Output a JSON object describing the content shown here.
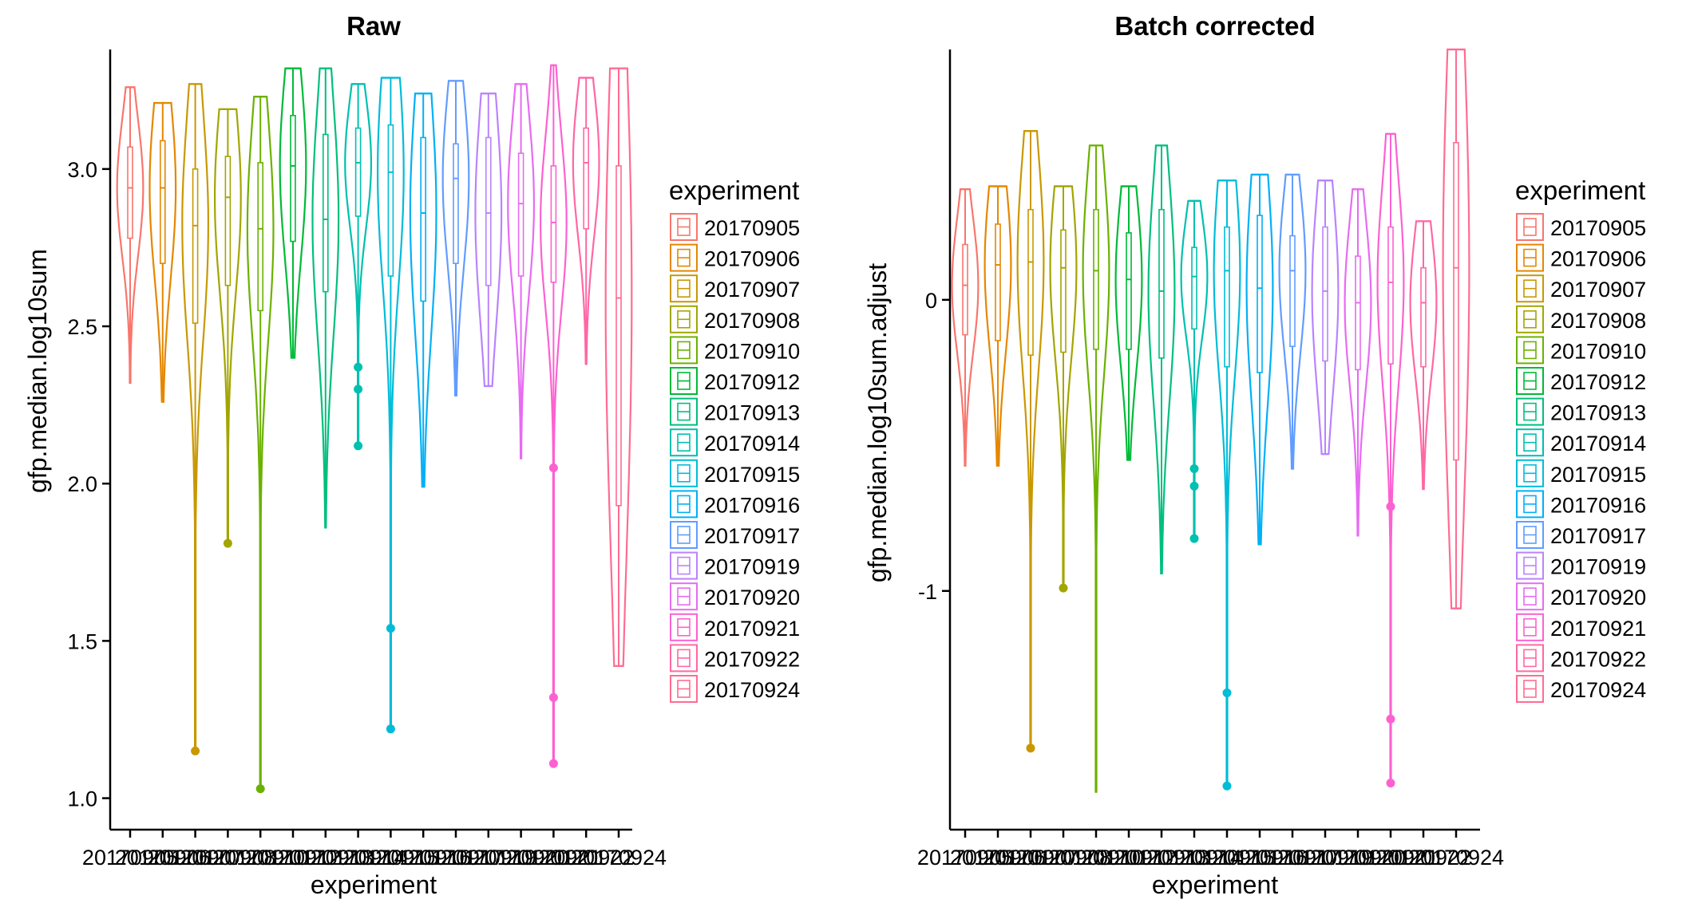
{
  "chart_data": [
    {
      "type": "violin",
      "title": "Raw",
      "xlabel": "experiment",
      "ylabel": "gfp.median.log10sum",
      "ylim": [
        0.9,
        3.38
      ],
      "yticks": [
        1.0,
        1.5,
        2.0,
        2.5,
        3.0
      ],
      "ytick_labels": [
        "1.0",
        "1.5",
        "2.0",
        "2.5",
        "3.0"
      ],
      "legend": {
        "title": "experiment",
        "position": "right"
      },
      "categories": [
        "20170905",
        "20170906",
        "20170907",
        "20170908",
        "20170910",
        "20170912",
        "20170913",
        "20170914",
        "20170915",
        "20170916",
        "20170917",
        "20170919",
        "20170920",
        "20170921",
        "20170922",
        "20170924"
      ],
      "series": [
        {
          "name": "20170905",
          "color": "#F8766D",
          "ymin": 2.32,
          "ymax": 3.26,
          "q1": 2.78,
          "median": 2.94,
          "q3": 3.07,
          "outliers": []
        },
        {
          "name": "20170906",
          "color": "#E58700",
          "ymin": 2.26,
          "ymax": 3.21,
          "q1": 2.7,
          "median": 2.94,
          "q3": 3.09,
          "outliers": []
        },
        {
          "name": "20170907",
          "color": "#C99800",
          "ymin": 1.15,
          "ymax": 3.27,
          "q1": 2.51,
          "median": 2.82,
          "q3": 3.0,
          "outliers": [
            1.15
          ]
        },
        {
          "name": "20170908",
          "color": "#A3A500",
          "ymin": 1.81,
          "ymax": 3.19,
          "q1": 2.63,
          "median": 2.91,
          "q3": 3.04,
          "outliers": [
            1.81
          ]
        },
        {
          "name": "20170910",
          "color": "#6BB100",
          "ymin": 1.03,
          "ymax": 3.23,
          "q1": 2.55,
          "median": 2.81,
          "q3": 3.02,
          "outliers": [
            1.03
          ]
        },
        {
          "name": "20170912",
          "color": "#00BA38",
          "ymin": 2.4,
          "ymax": 3.32,
          "q1": 2.77,
          "median": 3.01,
          "q3": 3.17,
          "outliers": []
        },
        {
          "name": "20170913",
          "color": "#00BF7D",
          "ymin": 1.86,
          "ymax": 3.32,
          "q1": 2.61,
          "median": 2.84,
          "q3": 3.11,
          "outliers": []
        },
        {
          "name": "20170914",
          "color": "#00C0AF",
          "ymin": 2.12,
          "ymax": 3.27,
          "q1": 2.85,
          "median": 3.02,
          "q3": 3.13,
          "outliers": [
            2.37,
            2.3,
            2.12
          ]
        },
        {
          "name": "20170915",
          "color": "#00BCD8",
          "ymin": 1.22,
          "ymax": 3.29,
          "q1": 2.66,
          "median": 2.99,
          "q3": 3.14,
          "outliers": [
            1.54,
            1.22
          ]
        },
        {
          "name": "20170916",
          "color": "#00B0F6",
          "ymin": 1.99,
          "ymax": 3.24,
          "q1": 2.58,
          "median": 2.86,
          "q3": 3.1,
          "outliers": []
        },
        {
          "name": "20170917",
          "color": "#619CFF",
          "ymin": 2.28,
          "ymax": 3.28,
          "q1": 2.7,
          "median": 2.97,
          "q3": 3.08,
          "outliers": []
        },
        {
          "name": "20170919",
          "color": "#B983FF",
          "ymin": 2.31,
          "ymax": 3.24,
          "q1": 2.63,
          "median": 2.86,
          "q3": 3.1,
          "outliers": []
        },
        {
          "name": "20170920",
          "color": "#E76BF3",
          "ymin": 2.08,
          "ymax": 3.27,
          "q1": 2.66,
          "median": 2.89,
          "q3": 3.05,
          "outliers": []
        },
        {
          "name": "20170921",
          "color": "#FD61D1",
          "ymin": 1.11,
          "ymax": 3.33,
          "q1": 2.64,
          "median": 2.83,
          "q3": 3.01,
          "outliers": [
            2.05,
            1.32,
            1.11
          ]
        },
        {
          "name": "20170922",
          "color": "#FF67A4",
          "ymin": 2.38,
          "ymax": 3.29,
          "q1": 2.81,
          "median": 3.02,
          "q3": 3.13,
          "outliers": []
        },
        {
          "name": "20170924",
          "color": "#FF6C91",
          "ymin": 1.42,
          "ymax": 3.32,
          "q1": 1.93,
          "median": 2.59,
          "q3": 3.01,
          "outliers": []
        }
      ]
    },
    {
      "type": "violin",
      "title": "Batch corrected",
      "xlabel": "experiment",
      "ylabel": "gfp.median.log10sum.adjust",
      "ylim": [
        -1.82,
        0.86
      ],
      "yticks": [
        -1,
        0
      ],
      "ytick_labels": [
        "-1",
        "0"
      ],
      "legend": {
        "title": "experiment",
        "position": "right"
      },
      "categories": [
        "20170905",
        "20170906",
        "20170907",
        "20170908",
        "20170910",
        "20170912",
        "20170913",
        "20170914",
        "20170915",
        "20170916",
        "20170917",
        "20170919",
        "20170920",
        "20170921",
        "20170922",
        "20170924"
      ],
      "series": [
        {
          "name": "20170905",
          "color": "#F8766D",
          "ymin": -0.57,
          "ymax": 0.38,
          "q1": -0.12,
          "median": 0.05,
          "q3": 0.19,
          "outliers": []
        },
        {
          "name": "20170906",
          "color": "#E58700",
          "ymin": -0.57,
          "ymax": 0.39,
          "q1": -0.14,
          "median": 0.12,
          "q3": 0.26,
          "outliers": []
        },
        {
          "name": "20170907",
          "color": "#C99800",
          "ymin": -1.54,
          "ymax": 0.58,
          "q1": -0.19,
          "median": 0.13,
          "q3": 0.31,
          "outliers": [
            -1.54
          ]
        },
        {
          "name": "20170908",
          "color": "#A3A500",
          "ymin": -0.99,
          "ymax": 0.39,
          "q1": -0.18,
          "median": 0.11,
          "q3": 0.24,
          "outliers": [
            -0.99
          ]
        },
        {
          "name": "20170910",
          "color": "#6BB100",
          "ymin": -1.69,
          "ymax": 0.53,
          "q1": -0.17,
          "median": 0.1,
          "q3": 0.31,
          "outliers": []
        },
        {
          "name": "20170912",
          "color": "#00BA38",
          "ymin": -0.55,
          "ymax": 0.39,
          "q1": -0.17,
          "median": 0.07,
          "q3": 0.23,
          "outliers": []
        },
        {
          "name": "20170913",
          "color": "#00BF7D",
          "ymin": -0.94,
          "ymax": 0.53,
          "q1": -0.2,
          "median": 0.03,
          "q3": 0.31,
          "outliers": []
        },
        {
          "name": "20170914",
          "color": "#00C0AF",
          "ymin": -0.82,
          "ymax": 0.34,
          "q1": -0.1,
          "median": 0.08,
          "q3": 0.18,
          "outliers": [
            -0.58,
            -0.64,
            -0.82
          ]
        },
        {
          "name": "20170915",
          "color": "#00BCD8",
          "ymin": -1.67,
          "ymax": 0.41,
          "q1": -0.23,
          "median": 0.1,
          "q3": 0.25,
          "outliers": [
            -1.35,
            -1.67
          ]
        },
        {
          "name": "20170916",
          "color": "#00B0F6",
          "ymin": -0.84,
          "ymax": 0.43,
          "q1": -0.25,
          "median": 0.04,
          "q3": 0.29,
          "outliers": []
        },
        {
          "name": "20170917",
          "color": "#619CFF",
          "ymin": -0.58,
          "ymax": 0.43,
          "q1": -0.16,
          "median": 0.1,
          "q3": 0.22,
          "outliers": []
        },
        {
          "name": "20170919",
          "color": "#B983FF",
          "ymin": -0.53,
          "ymax": 0.41,
          "q1": -0.21,
          "median": 0.03,
          "q3": 0.25,
          "outliers": []
        },
        {
          "name": "20170920",
          "color": "#E76BF3",
          "ymin": -0.81,
          "ymax": 0.38,
          "q1": -0.24,
          "median": -0.01,
          "q3": 0.15,
          "outliers": []
        },
        {
          "name": "20170921",
          "color": "#FD61D1",
          "ymin": -1.66,
          "ymax": 0.57,
          "q1": -0.22,
          "median": 0.06,
          "q3": 0.25,
          "outliers": [
            -0.71,
            -1.44,
            -1.66
          ]
        },
        {
          "name": "20170922",
          "color": "#FF67A4",
          "ymin": -0.65,
          "ymax": 0.27,
          "q1": -0.23,
          "median": -0.01,
          "q3": 0.11,
          "outliers": []
        },
        {
          "name": "20170924",
          "color": "#FF6C91",
          "ymin": -1.06,
          "ymax": 0.86,
          "q1": -0.55,
          "median": 0.11,
          "q3": 0.54,
          "outliers": []
        }
      ]
    }
  ]
}
